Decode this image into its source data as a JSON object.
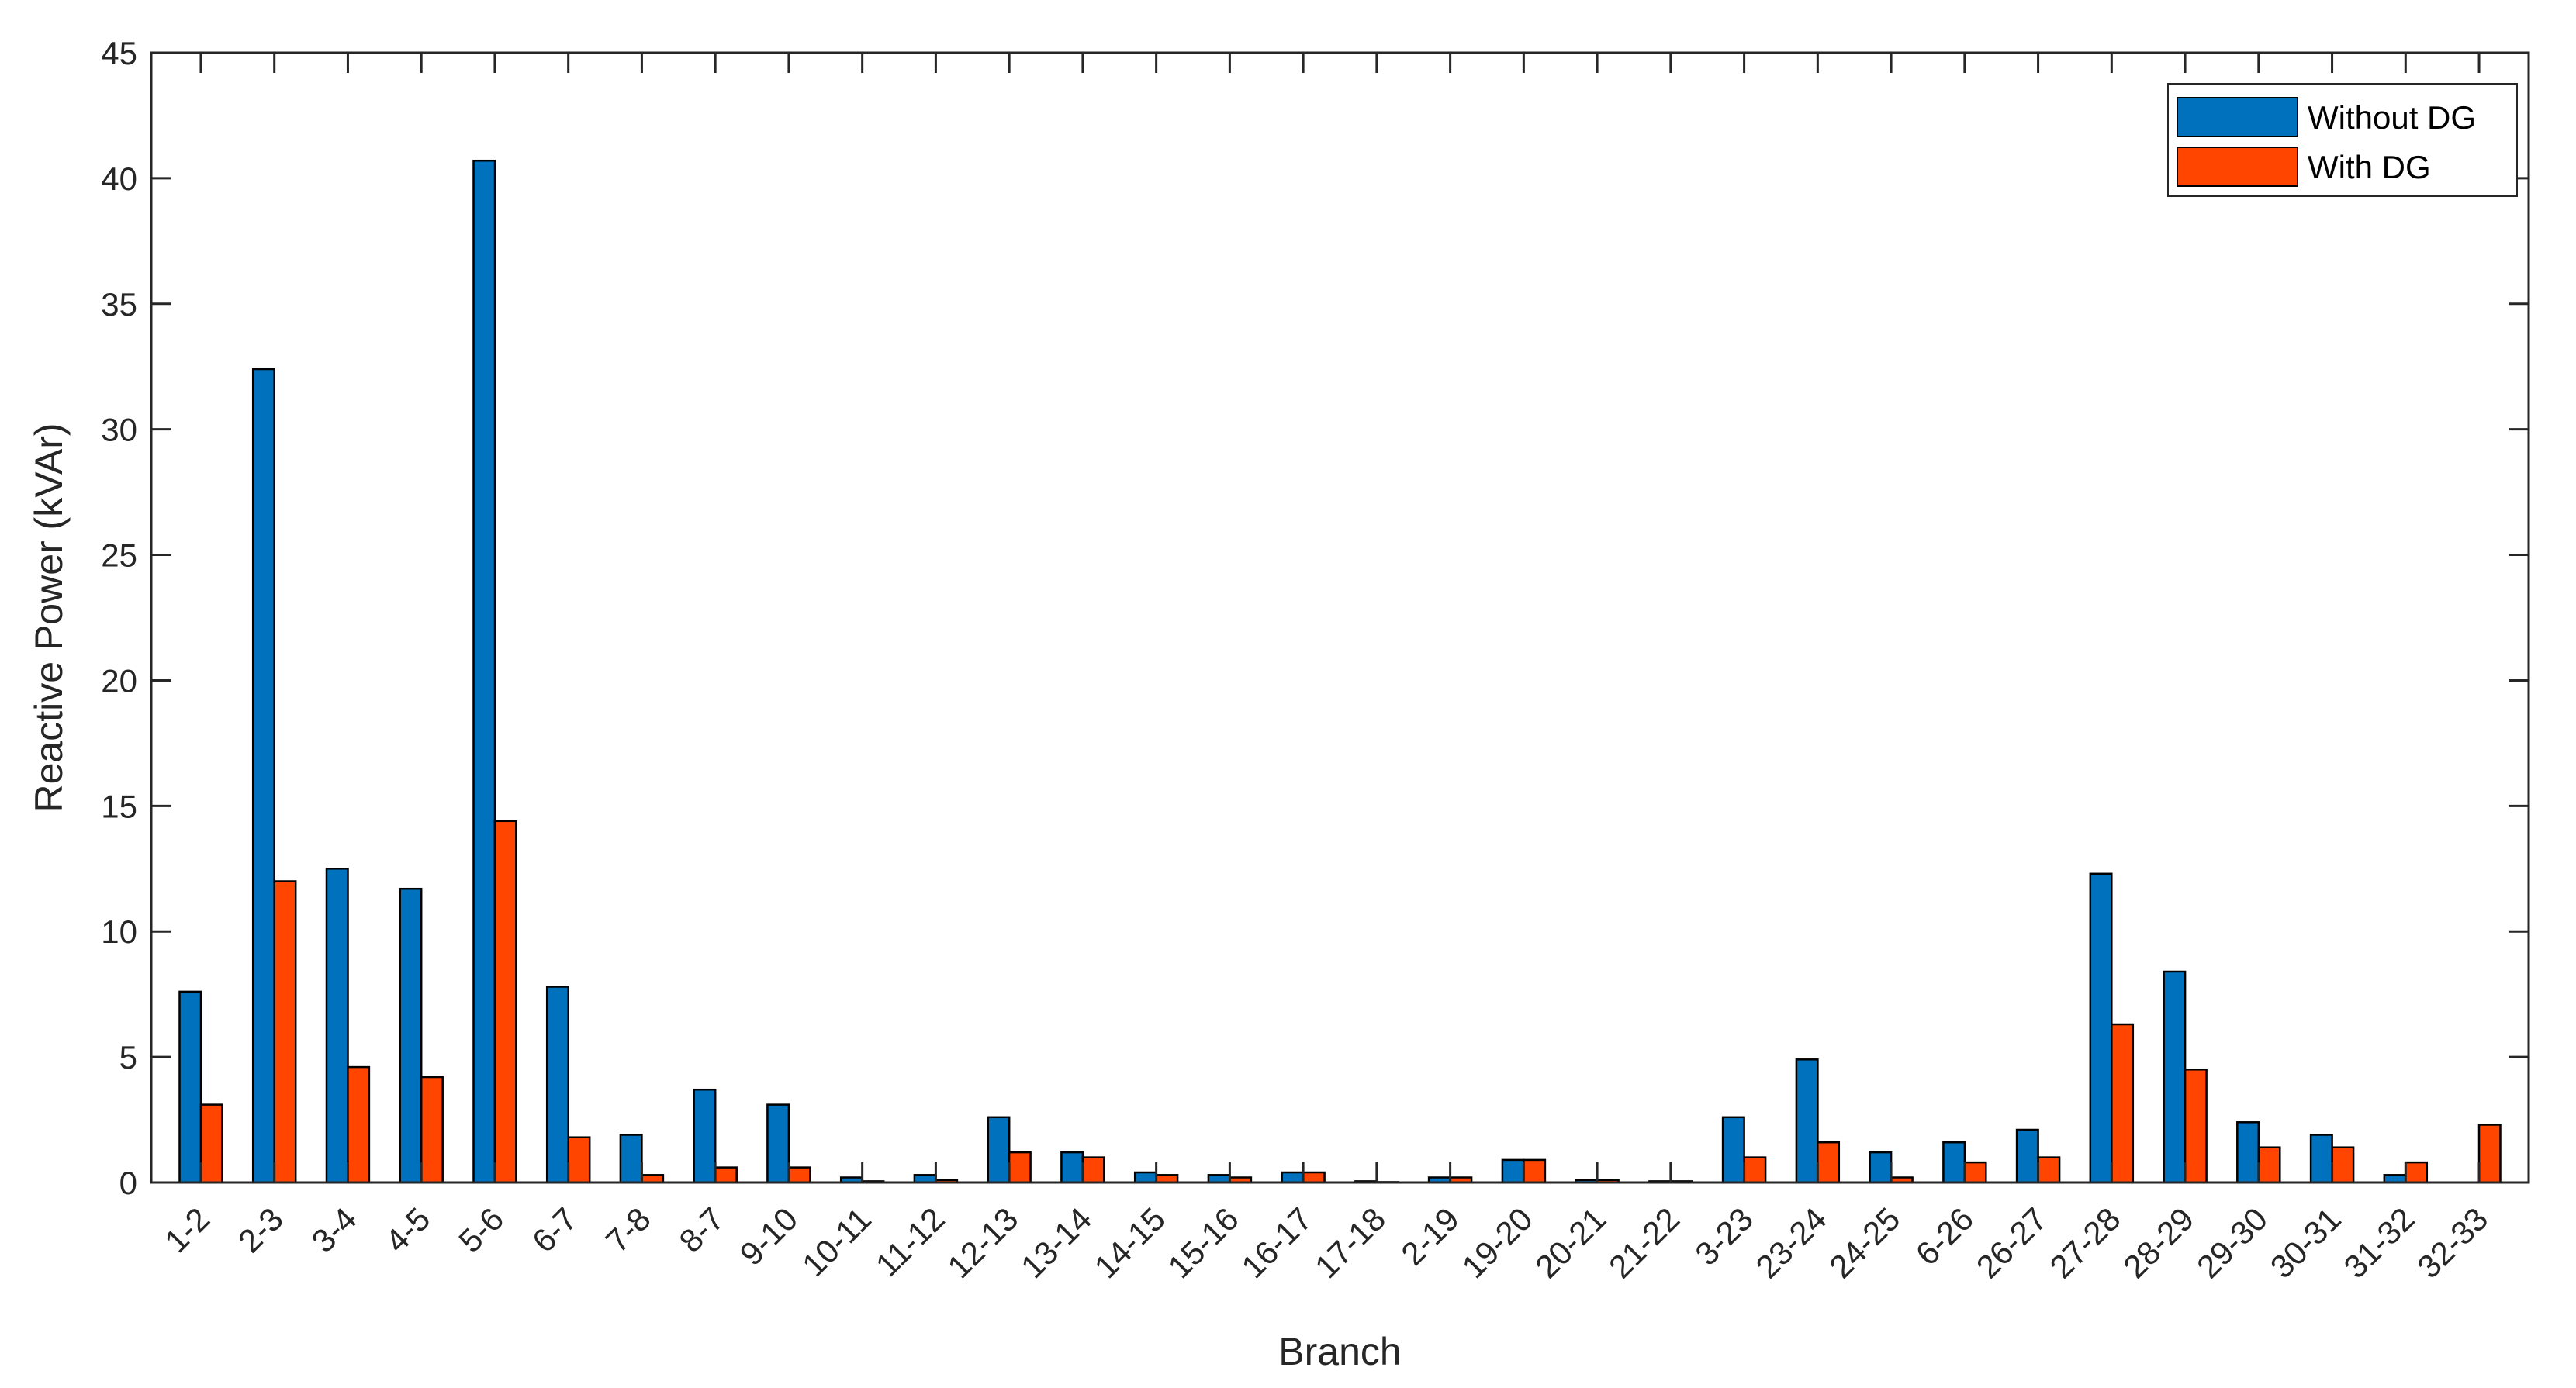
{
  "chart_data": {
    "type": "bar",
    "title": "",
    "xlabel": "Branch",
    "ylabel": "Reactive Power (kVAr)",
    "ylim": [
      0,
      45
    ],
    "yticks": [
      0,
      5,
      10,
      15,
      20,
      25,
      30,
      35,
      40,
      45
    ],
    "grid": false,
    "legend_position": "top-right",
    "categories": [
      "1-2",
      "2-3",
      "3-4",
      "4-5",
      "5-6",
      "6-7",
      "7-8",
      "8-7",
      "9-10",
      "10-11",
      "11-12",
      "12-13",
      "13-14",
      "14-15",
      "15-16",
      "16-17",
      "17-18",
      "2-19",
      "19-20",
      "20-21",
      "21-22",
      "3-23",
      "23-24",
      "24-25",
      "6-26",
      "26-27",
      "27-28",
      "28-29",
      "29-30",
      "30-31",
      "31-32",
      "32-33"
    ],
    "series": [
      {
        "name": "Without DG",
        "color": "#0072BD",
        "values": [
          7.6,
          32.4,
          12.5,
          11.7,
          40.7,
          7.8,
          1.9,
          3.7,
          3.1,
          0.2,
          0.3,
          2.6,
          1.2,
          0.4,
          0.3,
          0.4,
          0.05,
          0.2,
          0.9,
          0.1,
          0.05,
          2.6,
          4.9,
          1.2,
          1.6,
          2.1,
          12.3,
          8.4,
          2.4,
          1.9,
          0.3,
          0
        ]
      },
      {
        "name": "With DG",
        "color": "#FF4500",
        "values": [
          3.1,
          12.0,
          4.6,
          4.2,
          14.4,
          1.8,
          0.3,
          0.6,
          0.6,
          0.05,
          0.1,
          1.2,
          1.0,
          0.3,
          0.2,
          0.4,
          0.02,
          0.2,
          0.9,
          0.1,
          0.05,
          1.0,
          1.6,
          0.2,
          0.8,
          1.0,
          6.3,
          4.5,
          1.4,
          1.4,
          0.8,
          2.3
        ]
      }
    ]
  }
}
